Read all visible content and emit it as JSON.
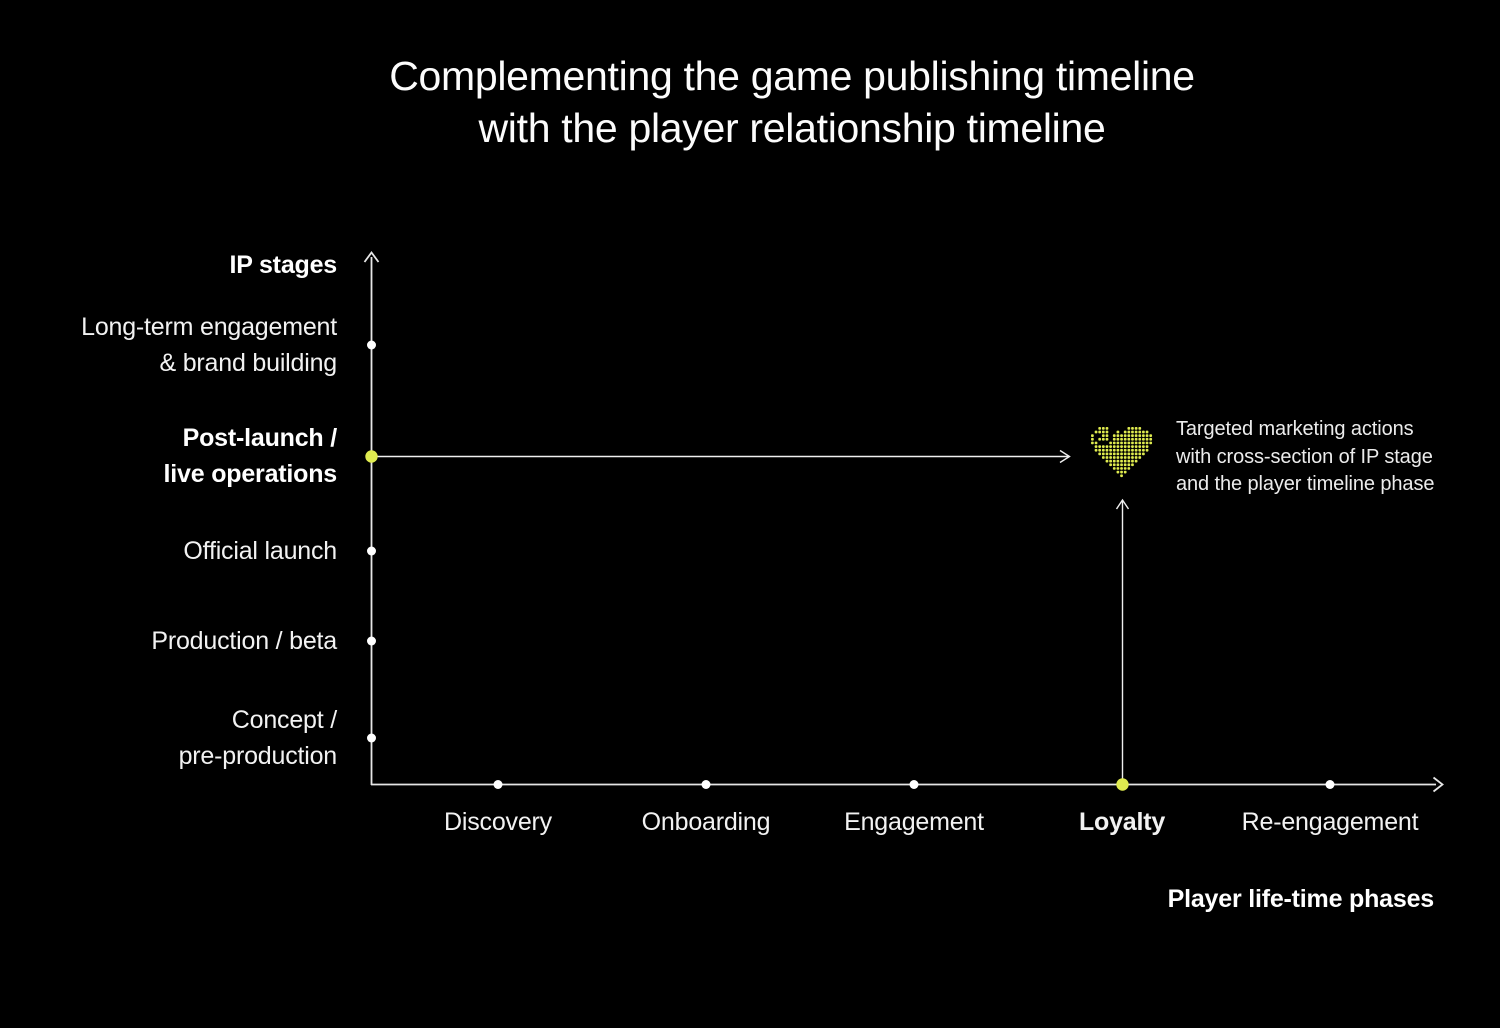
{
  "chart_data": {
    "type": "diagram",
    "title": "Complementing the game publishing timeline\nwith the player relationship timeline",
    "y_axis": {
      "label": "IP stages",
      "stages": [
        {
          "label": "Long-term engagement\n& brand building",
          "bold": false,
          "accent": false
        },
        {
          "label": "Post-launch /\nlive operations",
          "bold": true,
          "accent": true
        },
        {
          "label": "Official launch",
          "bold": false,
          "accent": false
        },
        {
          "label": "Production / beta",
          "bold": false,
          "accent": false
        },
        {
          "label": "Concept /\npre-production",
          "bold": false,
          "accent": false
        }
      ]
    },
    "x_axis": {
      "label": "Player life-time phases",
      "phases": [
        {
          "label": "Discovery",
          "bold": false,
          "accent": false
        },
        {
          "label": "Onboarding",
          "bold": false,
          "accent": false
        },
        {
          "label": "Engagement",
          "bold": false,
          "accent": false
        },
        {
          "label": "Loyalty",
          "bold": true,
          "accent": true
        },
        {
          "label": "Re-engagement",
          "bold": false,
          "accent": false
        }
      ]
    },
    "highlight": {
      "ip_stage": "Post-launch / live operations",
      "phase": "Loyalty",
      "marker": "pixel-heart-icon",
      "annotation": "Targeted marketing actions\nwith cross-section of IP stage\nand the player timeline phase"
    },
    "legend": "none",
    "grid": false
  },
  "colors": {
    "background": "#000000",
    "text": "#ffffff",
    "axis": "#e6e6e6",
    "accent": "#dfeb4f"
  },
  "icons": {
    "pixel_heart": {
      "rows": [
        "00111000001111000",
        "01111001011111110",
        "10011011111111111",
        "10111011111111111",
        "11000111111111111",
        "01111111111111110",
        "01111111111111110",
        "00111111111111100",
        "00011111111111000",
        "00001111111110000",
        "00000111111100000",
        "00000011111000000",
        "00000001110000000",
        "00000000100000000"
      ]
    }
  }
}
